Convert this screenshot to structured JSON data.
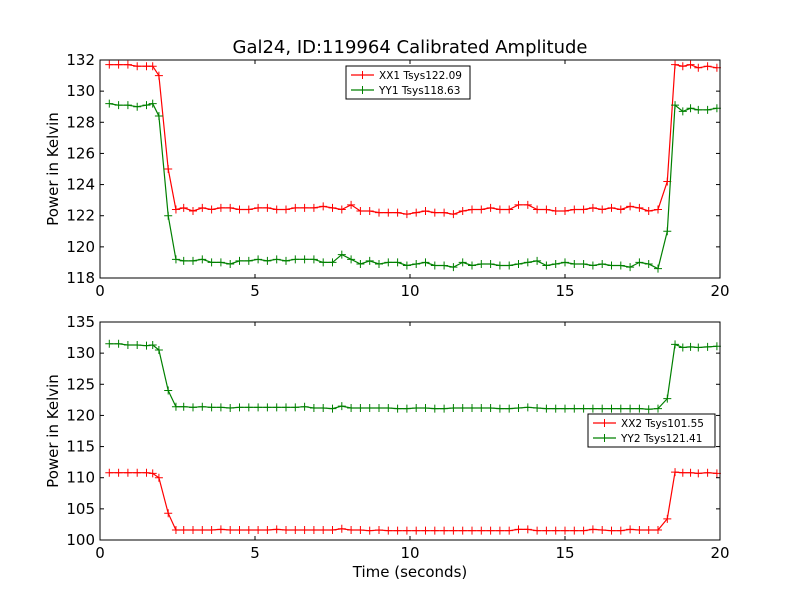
{
  "title": "Gal24, ID:119964 Calibrated Amplitude",
  "chart_data": [
    {
      "type": "line",
      "xlabel": "",
      "ylabel": "Power in Kelvin",
      "xlim": [
        0,
        20
      ],
      "ylim": [
        118,
        132
      ],
      "xticks": [
        0,
        5,
        10,
        15,
        20
      ],
      "yticks": [
        118,
        120,
        122,
        124,
        126,
        128,
        130,
        132
      ],
      "grid": false,
      "legend_position": "top-center",
      "x": [
        0.3,
        0.6,
        0.9,
        1.2,
        1.5,
        1.7,
        1.9,
        2.2,
        2.45,
        2.7,
        3.0,
        3.3,
        3.6,
        3.9,
        4.2,
        4.5,
        4.8,
        5.1,
        5.4,
        5.7,
        6.0,
        6.3,
        6.6,
        6.9,
        7.2,
        7.5,
        7.8,
        8.1,
        8.4,
        8.7,
        9.0,
        9.3,
        9.6,
        9.9,
        10.2,
        10.5,
        10.8,
        11.1,
        11.4,
        11.7,
        12.0,
        12.3,
        12.6,
        12.9,
        13.2,
        13.5,
        13.8,
        14.1,
        14.4,
        14.7,
        15.0,
        15.3,
        15.6,
        15.9,
        16.2,
        16.5,
        16.8,
        17.1,
        17.4,
        17.7,
        18.0,
        18.3,
        18.55,
        18.8,
        19.05,
        19.3,
        19.6,
        19.9
      ],
      "series": [
        {
          "name": "XX1 Tsys122.09",
          "color": "#ff0000",
          "values": [
            131.7,
            131.7,
            131.7,
            131.6,
            131.6,
            131.6,
            131.0,
            125.0,
            122.4,
            122.5,
            122.3,
            122.5,
            122.4,
            122.5,
            122.5,
            122.4,
            122.4,
            122.5,
            122.5,
            122.4,
            122.4,
            122.5,
            122.5,
            122.5,
            122.6,
            122.5,
            122.4,
            122.7,
            122.3,
            122.3,
            122.2,
            122.2,
            122.2,
            122.1,
            122.2,
            122.3,
            122.2,
            122.2,
            122.1,
            122.3,
            122.4,
            122.4,
            122.5,
            122.4,
            122.4,
            122.7,
            122.7,
            122.4,
            122.4,
            122.3,
            122.3,
            122.4,
            122.4,
            122.5,
            122.4,
            122.5,
            122.4,
            122.6,
            122.5,
            122.3,
            122.4,
            124.2,
            131.7,
            131.6,
            131.7,
            131.5,
            131.6,
            131.5
          ]
        },
        {
          "name": "YY1 Tsys118.63",
          "color": "#008000",
          "values": [
            129.2,
            129.1,
            129.1,
            129.0,
            129.1,
            129.2,
            128.4,
            122.0,
            119.2,
            119.1,
            119.1,
            119.2,
            119.0,
            119.0,
            118.9,
            119.1,
            119.1,
            119.2,
            119.1,
            119.2,
            119.1,
            119.2,
            119.2,
            119.2,
            119.0,
            119.0,
            119.5,
            119.2,
            118.9,
            119.1,
            118.9,
            119.0,
            119.0,
            118.8,
            118.9,
            119.0,
            118.8,
            118.8,
            118.7,
            119.0,
            118.8,
            118.9,
            118.9,
            118.8,
            118.8,
            118.9,
            119.0,
            119.1,
            118.8,
            118.9,
            119.0,
            118.9,
            118.9,
            118.8,
            118.9,
            118.8,
            118.8,
            118.7,
            119.0,
            118.9,
            118.6,
            121.0,
            129.1,
            128.7,
            128.9,
            128.8,
            128.8,
            128.9
          ]
        }
      ]
    },
    {
      "type": "line",
      "xlabel": "Time (seconds)",
      "ylabel": "Power in Kelvin",
      "xlim": [
        0,
        20
      ],
      "ylim": [
        100,
        135
      ],
      "xticks": [
        0,
        5,
        10,
        15,
        20
      ],
      "yticks": [
        100,
        105,
        110,
        115,
        120,
        125,
        130,
        135
      ],
      "grid": false,
      "legend_position": "center-right",
      "x": [
        0.3,
        0.6,
        0.9,
        1.2,
        1.5,
        1.7,
        1.9,
        2.2,
        2.45,
        2.7,
        3.0,
        3.3,
        3.6,
        3.9,
        4.2,
        4.5,
        4.8,
        5.1,
        5.4,
        5.7,
        6.0,
        6.3,
        6.6,
        6.9,
        7.2,
        7.5,
        7.8,
        8.1,
        8.4,
        8.7,
        9.0,
        9.3,
        9.6,
        9.9,
        10.2,
        10.5,
        10.8,
        11.1,
        11.4,
        11.7,
        12.0,
        12.3,
        12.6,
        12.9,
        13.2,
        13.5,
        13.8,
        14.1,
        14.4,
        14.7,
        15.0,
        15.3,
        15.6,
        15.9,
        16.2,
        16.5,
        16.8,
        17.1,
        17.4,
        17.7,
        18.0,
        18.3,
        18.55,
        18.8,
        19.05,
        19.3,
        19.6,
        19.9
      ],
      "series": [
        {
          "name": "XX2 Tsys101.55",
          "color": "#ff0000",
          "values": [
            110.8,
            110.8,
            110.8,
            110.8,
            110.8,
            110.7,
            110.0,
            104.3,
            101.6,
            101.6,
            101.6,
            101.6,
            101.6,
            101.7,
            101.6,
            101.6,
            101.6,
            101.6,
            101.6,
            101.7,
            101.6,
            101.6,
            101.6,
            101.6,
            101.6,
            101.6,
            101.8,
            101.6,
            101.6,
            101.5,
            101.6,
            101.5,
            101.5,
            101.5,
            101.5,
            101.5,
            101.5,
            101.5,
            101.5,
            101.5,
            101.5,
            101.5,
            101.5,
            101.5,
            101.5,
            101.7,
            101.7,
            101.5,
            101.5,
            101.5,
            101.5,
            101.5,
            101.5,
            101.7,
            101.6,
            101.5,
            101.5,
            101.7,
            101.6,
            101.6,
            101.6,
            103.4,
            110.9,
            110.8,
            110.8,
            110.7,
            110.8,
            110.7
          ]
        },
        {
          "name": "YY2 Tsys121.41",
          "color": "#008000",
          "values": [
            131.5,
            131.5,
            131.3,
            131.3,
            131.2,
            131.3,
            130.5,
            124.0,
            121.4,
            121.4,
            121.3,
            121.4,
            121.3,
            121.3,
            121.2,
            121.3,
            121.3,
            121.3,
            121.3,
            121.3,
            121.3,
            121.3,
            121.4,
            121.2,
            121.2,
            121.1,
            121.5,
            121.2,
            121.2,
            121.2,
            121.2,
            121.2,
            121.1,
            121.1,
            121.2,
            121.2,
            121.1,
            121.1,
            121.2,
            121.2,
            121.2,
            121.2,
            121.2,
            121.1,
            121.1,
            121.2,
            121.3,
            121.2,
            121.1,
            121.1,
            121.1,
            121.1,
            121.1,
            121.1,
            121.1,
            121.1,
            121.1,
            121.1,
            121.1,
            121.0,
            121.1,
            122.7,
            131.4,
            130.9,
            131.0,
            130.9,
            131.0,
            131.1
          ]
        }
      ]
    }
  ]
}
